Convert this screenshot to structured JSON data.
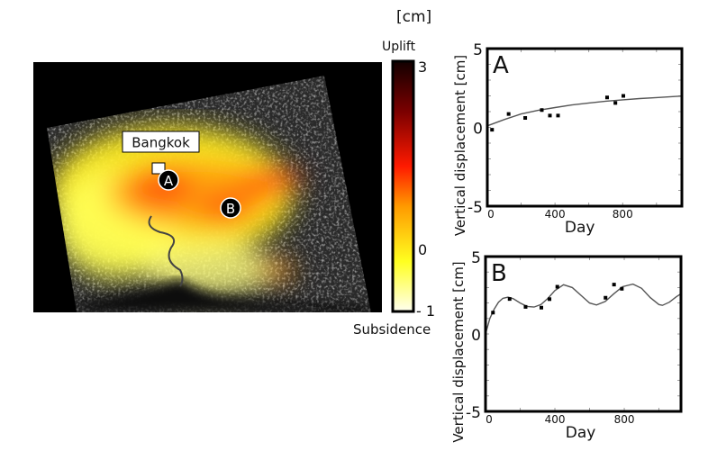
{
  "map": {
    "city_label": "Bangkok",
    "markers": [
      {
        "label": "A"
      },
      {
        "label": "B"
      }
    ]
  },
  "colorbar": {
    "unit": "[cm]",
    "top_label": "Uplift",
    "bottom_label": "Subsidence",
    "ticks": [
      "3",
      "0",
      "- 1"
    ],
    "range": [
      -1,
      3
    ],
    "colors": [
      "#fffff0",
      "#ffff20",
      "#ff9a00",
      "#ff1a00",
      "#7a0000",
      "#120000"
    ]
  },
  "chart_data": [
    {
      "type": "scatter",
      "panel": "A",
      "title": "A",
      "xlabel": "Day",
      "ylabel": "Vertical  displacement [cm]",
      "xlim": [
        0,
        1150
      ],
      "ylim": [
        -5,
        5
      ],
      "xticks": [
        "0",
        "400",
        "800"
      ],
      "xtick_values": [
        0,
        400,
        800
      ],
      "yticks": [
        "5",
        "0",
        "-5"
      ],
      "ytick_values": [
        5,
        0,
        -5
      ],
      "points": {
        "x": [
          28,
          126,
          224,
          322,
          370,
          418,
          708,
          757,
          804
        ],
        "y": [
          -0.15,
          0.85,
          0.6,
          1.1,
          0.75,
          0.75,
          1.9,
          1.55,
          2.0
        ]
      },
      "fit": {
        "x": [
          0,
          100,
          200,
          300,
          400,
          500,
          600,
          700,
          800,
          900,
          1000,
          1150
        ],
        "y": [
          0.1,
          0.5,
          0.85,
          1.08,
          1.26,
          1.42,
          1.55,
          1.66,
          1.75,
          1.83,
          1.89,
          1.99
        ]
      }
    },
    {
      "type": "scatter",
      "panel": "B",
      "title": "B",
      "xlabel": "Day",
      "ylabel": "Vertical  displacement [cm]",
      "xlim": [
        0,
        1127
      ],
      "ylim": [
        -5,
        5
      ],
      "xticks": [
        "0",
        "400",
        "800"
      ],
      "xtick_values": [
        0,
        400,
        800
      ],
      "yticks": [
        "5",
        "0",
        "-5"
      ],
      "ytick_values": [
        5,
        0,
        -5
      ],
      "points": {
        "x": [
          43,
          139,
          231,
          322,
          369,
          414,
          692,
          741,
          786
        ],
        "y": [
          1.38,
          2.26,
          1.75,
          1.7,
          2.25,
          3.05,
          2.34,
          3.19,
          2.92
        ]
      },
      "fit": {
        "x": [
          0,
          25,
          50,
          75,
          100,
          130,
          160,
          200,
          240,
          280,
          320,
          360,
          400,
          450,
          500,
          550,
          600,
          640,
          690,
          740,
          790,
          850,
          900,
          950,
          1000,
          1020,
          1060,
          1100,
          1127
        ],
        "y": [
          0,
          1.0,
          1.6,
          2.05,
          2.3,
          2.38,
          2.28,
          2.0,
          1.78,
          1.74,
          1.9,
          2.3,
          2.8,
          3.18,
          3.0,
          2.5,
          2.0,
          1.87,
          2.1,
          2.6,
          3.05,
          3.22,
          2.95,
          2.35,
          1.9,
          1.85,
          2.05,
          2.4,
          2.6
        ]
      }
    }
  ]
}
